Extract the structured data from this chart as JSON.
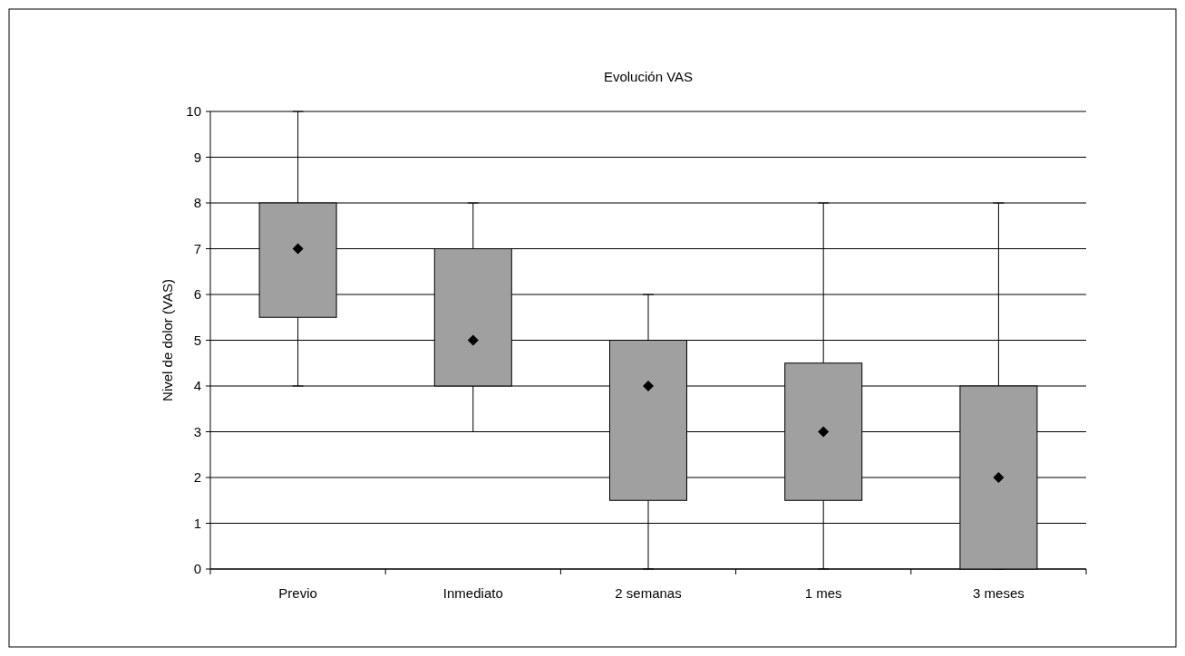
{
  "chart_data": {
    "type": "box",
    "title": "Evolución VAS",
    "ylabel": "Nivel de dolor (VAS)",
    "categories": [
      "Previo",
      "Inmediato",
      "2 semanas",
      "1 mes",
      "3 meses"
    ],
    "boxes": [
      {
        "low": 4,
        "q1": 5.5,
        "median": 7,
        "q3": 8,
        "high": 10
      },
      {
        "low": 3,
        "q1": 4,
        "median": 5,
        "q3": 7,
        "high": 8
      },
      {
        "low": 0,
        "q1": 1.5,
        "median": 4,
        "q3": 5,
        "high": 6
      },
      {
        "low": 0,
        "q1": 1.5,
        "median": 3,
        "q3": 4.5,
        "high": 8
      },
      {
        "low": 0,
        "q1": 0,
        "median": 2,
        "q3": 4,
        "high": 8
      }
    ],
    "color": "#a0a0a0",
    "ylim": [
      0,
      10
    ],
    "yticks": [
      0,
      1,
      2,
      3,
      4,
      5,
      6,
      7,
      8,
      9,
      10
    ],
    "grid": "y",
    "marker": "diamond"
  }
}
